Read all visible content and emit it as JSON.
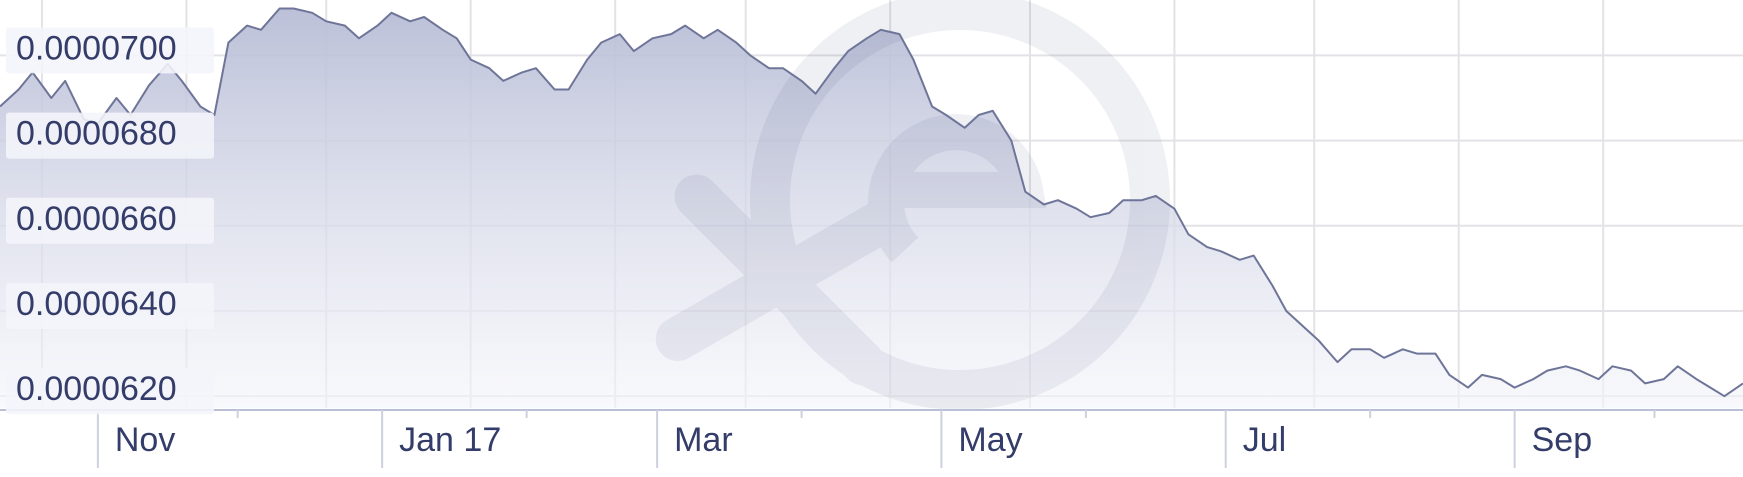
{
  "chart_data": {
    "type": "area",
    "title": "",
    "xlabel": "",
    "ylabel": "",
    "ylim": [
      6.1722e-05,
      7.13e-05
    ],
    "y_ticks": [
      "0.0000620",
      "0.0000640",
      "0.0000660",
      "0.0000680",
      "0.0000700"
    ],
    "y_tick_values": [
      6.2e-05,
      6.4e-05,
      6.6e-05,
      6.8e-05,
      7e-05
    ],
    "x_ticks": [
      "Nov",
      "Jan 17",
      "Mar",
      "May",
      "Jul",
      "Sep"
    ],
    "x_range": [
      "2016-10-11",
      "2017-10-20"
    ],
    "grid": true,
    "legend": "none",
    "watermark": "xe",
    "colors": {
      "line": "#6e7598",
      "fill_top": "#b8bdd6",
      "fill_bottom": "#f4f5fa",
      "labels": "#343c6a"
    },
    "series": [
      {
        "values": [
          [
            "2016-10-11",
            6.88e-05
          ],
          [
            "2016-10-15",
            6.92e-05
          ],
          [
            "2016-10-18",
            6.96e-05
          ],
          [
            "2016-10-22",
            6.9e-05
          ],
          [
            "2016-10-25",
            6.94e-05
          ],
          [
            "2016-10-29",
            6.85e-05
          ],
          [
            "2016-11-01",
            6.84e-05
          ],
          [
            "2016-11-05",
            6.9e-05
          ],
          [
            "2016-11-08",
            6.86e-05
          ],
          [
            "2016-11-12",
            6.93e-05
          ],
          [
            "2016-11-16",
            6.98e-05
          ],
          [
            "2016-11-19",
            6.94e-05
          ],
          [
            "2016-11-23",
            6.88e-05
          ],
          [
            "2016-11-26",
            6.86e-05
          ],
          [
            "2016-11-29",
            7.03e-05
          ],
          [
            "2016-12-03",
            7.07e-05
          ],
          [
            "2016-12-06",
            7.06e-05
          ],
          [
            "2016-12-10",
            7.11e-05
          ],
          [
            "2016-12-13",
            7.11e-05
          ],
          [
            "2016-12-17",
            7.1e-05
          ],
          [
            "2016-12-20",
            7.08e-05
          ],
          [
            "2016-12-24",
            7.07e-05
          ],
          [
            "2016-12-27",
            7.04e-05
          ],
          [
            "2016-12-31",
            7.07e-05
          ],
          [
            "2017-01-03",
            7.1e-05
          ],
          [
            "2017-01-07",
            7.08e-05
          ],
          [
            "2017-01-10",
            7.09e-05
          ],
          [
            "2017-01-14",
            7.06e-05
          ],
          [
            "2017-01-17",
            7.04e-05
          ],
          [
            "2017-01-20",
            6.99e-05
          ],
          [
            "2017-01-24",
            6.97e-05
          ],
          [
            "2017-01-27",
            6.94e-05
          ],
          [
            "2017-01-31",
            6.96e-05
          ],
          [
            "2017-02-03",
            6.97e-05
          ],
          [
            "2017-02-07",
            6.92e-05
          ],
          [
            "2017-02-10",
            6.92e-05
          ],
          [
            "2017-02-14",
            6.99e-05
          ],
          [
            "2017-02-17",
            7.03e-05
          ],
          [
            "2017-02-21",
            7.05e-05
          ],
          [
            "2017-02-24",
            7.01e-05
          ],
          [
            "2017-02-28",
            7.04e-05
          ],
          [
            "2017-03-04",
            7.05e-05
          ],
          [
            "2017-03-07",
            7.07e-05
          ],
          [
            "2017-03-11",
            7.04e-05
          ],
          [
            "2017-03-14",
            7.06e-05
          ],
          [
            "2017-03-18",
            7.03e-05
          ],
          [
            "2017-03-21",
            7e-05
          ],
          [
            "2017-03-25",
            6.97e-05
          ],
          [
            "2017-03-28",
            6.97e-05
          ],
          [
            "2017-04-01",
            6.94e-05
          ],
          [
            "2017-04-04",
            6.91e-05
          ],
          [
            "2017-04-08",
            6.97e-05
          ],
          [
            "2017-04-11",
            7.01e-05
          ],
          [
            "2017-04-15",
            7.04e-05
          ],
          [
            "2017-04-18",
            7.06e-05
          ],
          [
            "2017-04-22",
            7.05e-05
          ],
          [
            "2017-04-25",
            6.99e-05
          ],
          [
            "2017-04-29",
            6.88e-05
          ],
          [
            "2017-05-02",
            6.86e-05
          ],
          [
            "2017-05-06",
            6.83e-05
          ],
          [
            "2017-05-09",
            6.86e-05
          ],
          [
            "2017-05-12",
            6.87e-05
          ],
          [
            "2017-05-16",
            6.8e-05
          ],
          [
            "2017-05-19",
            6.68e-05
          ],
          [
            "2017-05-23",
            6.65e-05
          ],
          [
            "2017-05-26",
            6.66e-05
          ],
          [
            "2017-05-30",
            6.64e-05
          ],
          [
            "2017-06-02",
            6.62e-05
          ],
          [
            "2017-06-06",
            6.63e-05
          ],
          [
            "2017-06-09",
            6.66e-05
          ],
          [
            "2017-06-13",
            6.66e-05
          ],
          [
            "2017-06-16",
            6.67e-05
          ],
          [
            "2017-06-20",
            6.64e-05
          ],
          [
            "2017-06-23",
            6.58e-05
          ],
          [
            "2017-06-27",
            6.55e-05
          ],
          [
            "2017-06-30",
            6.54e-05
          ],
          [
            "2017-07-04",
            6.52e-05
          ],
          [
            "2017-07-07",
            6.53e-05
          ],
          [
            "2017-07-11",
            6.46e-05
          ],
          [
            "2017-07-14",
            6.4e-05
          ],
          [
            "2017-07-18",
            6.36e-05
          ],
          [
            "2017-07-21",
            6.33e-05
          ],
          [
            "2017-07-25",
            6.28e-05
          ],
          [
            "2017-07-28",
            6.31e-05
          ],
          [
            "2017-08-01",
            6.31e-05
          ],
          [
            "2017-08-04",
            6.29e-05
          ],
          [
            "2017-08-08",
            6.31e-05
          ],
          [
            "2017-08-11",
            6.3e-05
          ],
          [
            "2017-08-15",
            6.3e-05
          ],
          [
            "2017-08-18",
            6.25e-05
          ],
          [
            "2017-08-22",
            6.22e-05
          ],
          [
            "2017-08-25",
            6.25e-05
          ],
          [
            "2017-08-29",
            6.24e-05
          ],
          [
            "2017-09-01",
            6.22e-05
          ],
          [
            "2017-09-05",
            6.24e-05
          ],
          [
            "2017-09-08",
            6.26e-05
          ],
          [
            "2017-09-12",
            6.27e-05
          ],
          [
            "2017-09-15",
            6.26e-05
          ],
          [
            "2017-09-19",
            6.24e-05
          ],
          [
            "2017-09-22",
            6.27e-05
          ],
          [
            "2017-09-26",
            6.26e-05
          ],
          [
            "2017-09-29",
            6.23e-05
          ],
          [
            "2017-10-03",
            6.24e-05
          ],
          [
            "2017-10-06",
            6.27e-05
          ],
          [
            "2017-10-10",
            6.24e-05
          ],
          [
            "2017-10-13",
            6.22e-05
          ],
          [
            "2017-10-16",
            6.2e-05
          ],
          [
            "2017-10-20",
            6.23e-05
          ]
        ]
      }
    ]
  }
}
